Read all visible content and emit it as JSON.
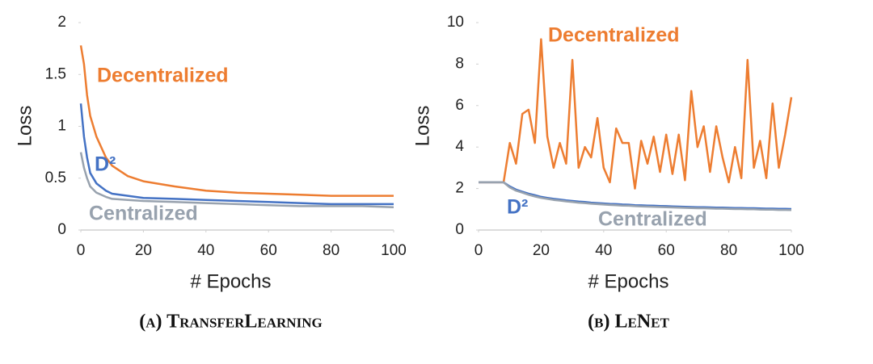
{
  "chart_data": [
    {
      "type": "line",
      "title": "(a) TransferLearning",
      "x_label": "# Epochs",
      "y_label": "Loss",
      "x": [
        0,
        1,
        2,
        3,
        5,
        8,
        10,
        15,
        20,
        30,
        40,
        50,
        60,
        70,
        80,
        90,
        100
      ],
      "series": [
        {
          "name": "Decentralized",
          "color": "#ed7d31",
          "values": [
            1.78,
            1.6,
            1.3,
            1.1,
            0.9,
            0.7,
            0.62,
            0.52,
            0.47,
            0.42,
            0.38,
            0.36,
            0.35,
            0.34,
            0.33,
            0.33,
            0.33
          ]
        },
        {
          "name": "D²",
          "color": "#4472c4",
          "values": [
            1.22,
            0.9,
            0.7,
            0.55,
            0.45,
            0.38,
            0.35,
            0.33,
            0.31,
            0.3,
            0.29,
            0.28,
            0.27,
            0.26,
            0.25,
            0.25,
            0.25
          ]
        },
        {
          "name": "Centralized",
          "color": "#98a2ae",
          "values": [
            0.75,
            0.6,
            0.5,
            0.42,
            0.36,
            0.32,
            0.3,
            0.29,
            0.28,
            0.27,
            0.26,
            0.25,
            0.24,
            0.23,
            0.23,
            0.23,
            0.22
          ]
        }
      ],
      "xlim": [
        0,
        100
      ],
      "xticks": [
        0,
        20,
        40,
        60,
        80,
        100
      ],
      "ylim": [
        0,
        2
      ],
      "yticks": [
        0,
        0.5,
        1,
        1.5,
        2
      ]
    },
    {
      "type": "line",
      "title": "(b) LeNet",
      "x_label": "# Epochs",
      "y_label": "Loss",
      "x": [
        0,
        2,
        4,
        6,
        8,
        10,
        12,
        14,
        16,
        18,
        20,
        22,
        24,
        26,
        28,
        30,
        32,
        34,
        36,
        38,
        40,
        42,
        44,
        46,
        48,
        50,
        52,
        54,
        56,
        58,
        60,
        62,
        64,
        66,
        68,
        70,
        72,
        74,
        76,
        78,
        80,
        82,
        84,
        86,
        88,
        90,
        92,
        94,
        96,
        98,
        100
      ],
      "series": [
        {
          "name": "Decentralized",
          "color": "#ed7d31",
          "values": [
            2.3,
            2.3,
            2.3,
            2.3,
            2.3,
            4.2,
            3.2,
            5.6,
            5.8,
            4.2,
            9.2,
            4.5,
            3.0,
            4.2,
            3.2,
            8.2,
            3.0,
            4.0,
            3.5,
            5.4,
            3.0,
            2.3,
            4.9,
            4.2,
            4.2,
            2.0,
            4.3,
            3.2,
            4.5,
            2.8,
            4.6,
            2.7,
            4.6,
            2.4,
            6.7,
            4.0,
            5.0,
            2.8,
            5.0,
            3.5,
            2.3,
            4.0,
            2.5,
            8.2,
            3.0,
            4.3,
            2.5,
            6.1,
            3.0,
            4.6,
            6.4
          ]
        },
        {
          "name": "D²",
          "color": "#4472c4",
          "values": [
            2.3,
            2.3,
            2.3,
            2.3,
            2.3,
            2.1,
            1.95,
            1.85,
            1.75,
            1.68,
            1.6,
            1.55,
            1.5,
            1.47,
            1.43,
            1.4,
            1.37,
            1.35,
            1.32,
            1.3,
            1.28,
            1.26,
            1.25,
            1.23,
            1.22,
            1.2,
            1.19,
            1.18,
            1.17,
            1.16,
            1.15,
            1.14,
            1.13,
            1.12,
            1.11,
            1.1,
            1.1,
            1.09,
            1.08,
            1.08,
            1.07,
            1.06,
            1.06,
            1.05,
            1.05,
            1.04,
            1.03,
            1.03,
            1.02,
            1.02,
            1.01
          ]
        },
        {
          "name": "Centralized",
          "color": "#98a2ae",
          "values": [
            2.3,
            2.3,
            2.3,
            2.3,
            2.3,
            2.05,
            1.9,
            1.8,
            1.7,
            1.62,
            1.55,
            1.5,
            1.45,
            1.42,
            1.38,
            1.35,
            1.32,
            1.3,
            1.27,
            1.25,
            1.23,
            1.21,
            1.2,
            1.18,
            1.17,
            1.15,
            1.14,
            1.13,
            1.12,
            1.11,
            1.1,
            1.09,
            1.08,
            1.07,
            1.06,
            1.05,
            1.05,
            1.04,
            1.03,
            1.03,
            1.02,
            1.01,
            1.01,
            1.0,
            1.0,
            0.99,
            0.98,
            0.98,
            0.97,
            0.97,
            0.96
          ]
        }
      ],
      "xlim": [
        0,
        100
      ],
      "xticks": [
        0,
        20,
        40,
        60,
        80,
        100
      ],
      "ylim": [
        0,
        10
      ],
      "yticks": [
        0,
        2,
        4,
        6,
        8,
        10
      ]
    }
  ]
}
